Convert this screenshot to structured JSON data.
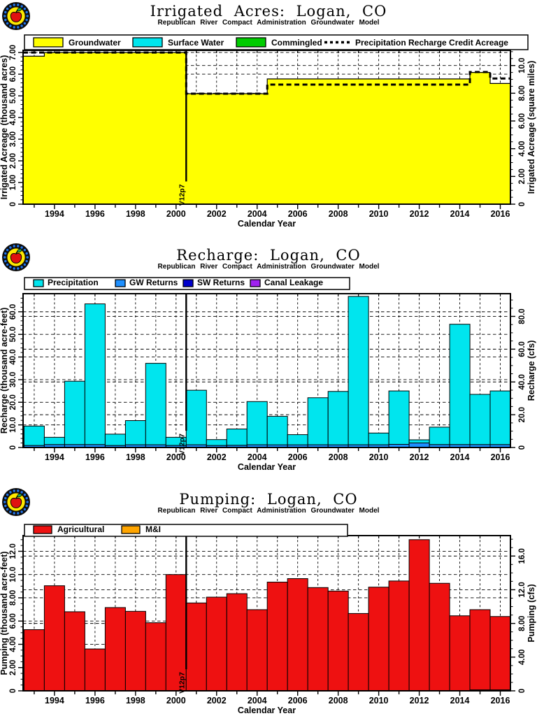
{
  "page": {
    "background": "#FFFFFF"
  },
  "chart_data": [
    {
      "type": "area-step",
      "title": "Irrigated Acres: Logan, CO",
      "subtitle": "Republican River Compact Administration Groundwater Model",
      "xlabel": "Calendar Year",
      "ylabel_left": "Irrigated Acreage (thousand acres)",
      "ylabel_right": "Irrigated Acreage (square miles)",
      "x_domain": [
        1992.45,
        2016.5
      ],
      "x_tick_labels": [
        1994,
        1996,
        1998,
        2000,
        2002,
        2004,
        2006,
        2008,
        2010,
        2012,
        2014,
        2016
      ],
      "ylim_left": [
        0,
        7.1
      ],
      "yticks_left": [
        0,
        1,
        2,
        3,
        4,
        5,
        6,
        7
      ],
      "ytick_labels_left": [
        "0",
        "1.00",
        "2.00",
        "3.00",
        "4.00",
        "5.00",
        "6.00",
        "7.00"
      ],
      "right_per_left": 1.5625,
      "yticks_right": [
        0,
        2,
        4,
        6,
        8,
        10
      ],
      "ytick_labels_right": [
        "0",
        "2.00",
        "4.00",
        "6.00",
        "8.00",
        "10.0"
      ],
      "years": [
        1993,
        1994,
        1995,
        1996,
        1997,
        1998,
        1999,
        2000,
        2001,
        2002,
        2003,
        2004,
        2005,
        2006,
        2007,
        2008,
        2009,
        2010,
        2011,
        2012,
        2013,
        2014,
        2015,
        2016
      ],
      "series": [
        {
          "name": "Groundwater",
          "color": "#FFFF00",
          "values": [
            6.83,
            7,
            7,
            7,
            7,
            7,
            7,
            7,
            5.1,
            5.1,
            5.1,
            5.1,
            5.78,
            5.78,
            5.78,
            5.78,
            5.78,
            5.78,
            5.78,
            5.78,
            5.78,
            5.78,
            6.08,
            5.57
          ]
        },
        {
          "name": "Surface Water",
          "color": "#00E5EE",
          "values": [
            0,
            0,
            0,
            0,
            0,
            0,
            0,
            0,
            0,
            0,
            0,
            0,
            0,
            0,
            0,
            0,
            0,
            0,
            0,
            0,
            0,
            0,
            0,
            0
          ]
        },
        {
          "name": "Commingled",
          "color": "#00CC00",
          "values": [
            0,
            0,
            0,
            0,
            0,
            0,
            0,
            0,
            0,
            0,
            0,
            0,
            0,
            0,
            0,
            0,
            0,
            0,
            0,
            0,
            0,
            0,
            0,
            0
          ]
        }
      ],
      "dashed_line": {
        "name": "Precipitation Recharge Credit Acreage",
        "values": [
          7,
          7,
          7,
          7,
          7,
          7,
          7,
          7,
          5.1,
          5.1,
          5.1,
          5.1,
          5.52,
          5.52,
          5.52,
          5.52,
          5.52,
          5.52,
          5.52,
          5.52,
          5.52,
          5.52,
          6.1,
          5.8
        ]
      },
      "marker": {
        "label": "V12p7",
        "x": 2000.5,
        "y_end": 1.05
      }
    },
    {
      "type": "bar-stacked",
      "title": "Recharge: Logan, CO",
      "subtitle": "Republican River Compact Administration Groundwater Model",
      "xlabel": "Calendar Year",
      "ylabel_left": "Recharge (thousand acre-feet)",
      "ylabel_right": "Recharge (cfs)",
      "x_domain": [
        1992.45,
        2016.5
      ],
      "x_tick_labels": [
        1994,
        1996,
        1998,
        2000,
        2002,
        2004,
        2006,
        2008,
        2010,
        2012,
        2014,
        2016
      ],
      "ylim_left": [
        0,
        68
      ],
      "yticks_left": [
        0,
        10,
        20,
        30,
        40,
        50,
        60
      ],
      "ytick_labels_left": [
        "0",
        "10.0",
        "20.0",
        "30.0",
        "40.0",
        "50.0",
        "60.0"
      ],
      "right_per_left": 1.3803,
      "yticks_right": [
        0,
        20,
        40,
        60,
        80
      ],
      "ytick_labels_right": [
        "0",
        "20.0",
        "40.0",
        "60.0",
        "80.0"
      ],
      "years": [
        1993,
        1994,
        1995,
        1996,
        1997,
        1998,
        1999,
        2000,
        2001,
        2002,
        2003,
        2004,
        2005,
        2006,
        2007,
        2008,
        2009,
        2010,
        2011,
        2012,
        2013,
        2014,
        2015,
        2016
      ],
      "stack_order": [
        1,
        2,
        3,
        0
      ],
      "series": [
        {
          "name": "Precipitation",
          "color": "#00E5EE",
          "values": [
            8.6,
            3.2,
            28.0,
            62.2,
            5.0,
            10.7,
            36.0,
            3.6,
            24.1,
            2.6,
            7.2,
            19.1,
            12.6,
            4.5,
            20.8,
            23.6,
            65.6,
            5.2,
            23.6,
            1.4,
            7.7,
            53.2,
            22.2,
            23.7
          ]
        },
        {
          "name": "GW Returns",
          "color": "#1E90FF",
          "values": [
            0.9,
            1.3,
            1.3,
            1.3,
            0.9,
            1.2,
            1.2,
            0.9,
            1.2,
            0.9,
            1.0,
            1.2,
            1.2,
            1.2,
            1.2,
            1.2,
            1.2,
            1.2,
            1.4,
            2.0,
            1.3,
            1.3,
            1.3,
            1.3
          ]
        },
        {
          "name": "SW Returns",
          "color": "#0000CC",
          "values": [
            0,
            0,
            0,
            0,
            0,
            0,
            0,
            0,
            0,
            0,
            0,
            0,
            0,
            0,
            0,
            0,
            0,
            0,
            0,
            0,
            0,
            0,
            0,
            0
          ]
        },
        {
          "name": "Canal Leakage",
          "color": "#A020F0",
          "values": [
            0,
            0,
            0,
            0,
            0,
            0,
            0,
            0,
            0,
            0,
            0,
            0,
            0,
            0,
            0,
            0,
            0,
            0,
            0,
            0,
            0,
            0,
            0,
            0
          ]
        }
      ],
      "marker": {
        "label": "V12p7",
        "x": 2000.5,
        "y_end": 7.4
      }
    },
    {
      "type": "bar-stacked",
      "title": "Pumping: Logan, CO",
      "subtitle": "Republican River Compact Administration Groundwater Model",
      "xlabel": "Calendar Year",
      "ylabel_left": "Pumping (thousand acre-feet)",
      "ylabel_right": "Pumping (cfs)",
      "x_domain": [
        1992.45,
        2016.5
      ],
      "x_tick_labels": [
        1994,
        1996,
        1998,
        2000,
        2002,
        2004,
        2006,
        2008,
        2010,
        2012,
        2014,
        2016
      ],
      "ylim_left": [
        0,
        13.35
      ],
      "yticks_left": [
        0,
        2,
        4,
        6,
        8,
        10,
        12
      ],
      "ytick_labels_left": [
        "0",
        "2.00",
        "4.00",
        "6.00",
        "8.00",
        "10.0",
        "12.0"
      ],
      "right_per_left": 1.3803,
      "yticks_right": [
        0,
        4,
        8,
        12,
        16
      ],
      "ytick_labels_right": [
        "0",
        "4.00",
        "8.00",
        "12.0",
        "16.0"
      ],
      "years": [
        1993,
        1994,
        1995,
        1996,
        1997,
        1998,
        1999,
        2000,
        2001,
        2002,
        2003,
        2004,
        2005,
        2006,
        2007,
        2008,
        2009,
        2010,
        2011,
        2012,
        2013,
        2014,
        2015,
        2016
      ],
      "stack_order": [
        1,
        0
      ],
      "series": [
        {
          "name": "Agricultural",
          "color": "#EE1111",
          "values": [
            5.26,
            9.04,
            6.8,
            3.6,
            7.16,
            6.84,
            5.86,
            10.0,
            7.56,
            8.06,
            8.36,
            6.98,
            9.35,
            9.65,
            8.88,
            8.58,
            6.65,
            8.92,
            9.45,
            13.0,
            9.25,
            6.45,
            6.9,
            6.31
          ]
        },
        {
          "name": "M&I",
          "color": "#FFA500",
          "values": [
            0,
            0,
            0,
            0,
            0,
            0,
            0,
            0,
            0,
            0,
            0,
            0,
            0,
            0,
            0,
            0,
            0,
            0,
            0,
            0,
            0,
            0,
            0.08,
            0.08
          ]
        }
      ],
      "marker": {
        "label": "V12p7",
        "x": 2000.5,
        "y_end": 1.86
      }
    }
  ]
}
